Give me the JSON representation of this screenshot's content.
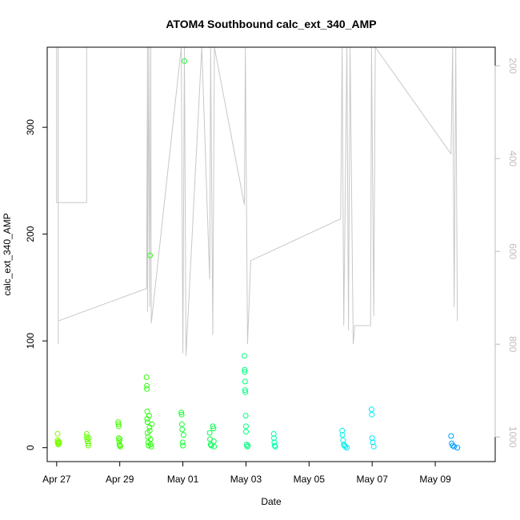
{
  "chart_data": {
    "type": "scatter",
    "title": "ATOM4 Southbound calc_ext_340_AMP",
    "xlabel": "Date",
    "ylabel": "calc_ext_340_AMP",
    "x_ticks": [
      "Apr 27",
      "Apr 29",
      "May 01",
      "May 03",
      "May 05",
      "May 07",
      "May 09"
    ],
    "y_ticks": [
      "0",
      "100",
      "200",
      "300"
    ],
    "y2_ticks": [
      "200",
      "400",
      "600",
      "800",
      "1000"
    ],
    "xlim": [
      -0.3,
      13.9
    ],
    "ylim": [
      -13,
      375
    ],
    "y2lim": [
      1053,
      160
    ],
    "x_unit": "days since Apr 27",
    "grid": false,
    "colors": {
      "line": "#c8c8c8",
      "right_axis": "#bdbdbd",
      "point_palette": [
        "#80ff00",
        "#33ff00",
        "#00ff55",
        "#00ffcc",
        "#00e6ff",
        "#0099ff"
      ]
    },
    "series": [
      {
        "name": "calc_ext_340_AMP",
        "points": [
          [
            0.03,
            13
          ],
          [
            0.03,
            7
          ],
          [
            0.03,
            5
          ],
          [
            0.05,
            4
          ],
          [
            0.05,
            3
          ],
          [
            0.06,
            6
          ],
          [
            0.07,
            4
          ],
          [
            0.08,
            5
          ],
          [
            0.95,
            13
          ],
          [
            0.95,
            10
          ],
          [
            0.97,
            8
          ],
          [
            0.98,
            6
          ],
          [
            1.0,
            4
          ],
          [
            1.0,
            2
          ],
          [
            1.02,
            9
          ],
          [
            1.95,
            24
          ],
          [
            1.96,
            22
          ],
          [
            1.97,
            20
          ],
          [
            1.97,
            9
          ],
          [
            1.98,
            6
          ],
          [
            1.99,
            3
          ],
          [
            2.0,
            2
          ],
          [
            2.0,
            8
          ],
          [
            2.02,
            1
          ],
          [
            2.85,
            66
          ],
          [
            2.86,
            58
          ],
          [
            2.86,
            55
          ],
          [
            2.87,
            34
          ],
          [
            2.87,
            27
          ],
          [
            2.88,
            24
          ],
          [
            2.88,
            14
          ],
          [
            2.9,
            10
          ],
          [
            2.9,
            5
          ],
          [
            2.91,
            2
          ],
          [
            2.93,
            30
          ],
          [
            2.94,
            19
          ],
          [
            2.95,
            16
          ],
          [
            2.96,
            180
          ],
          [
            2.97,
            8
          ],
          [
            2.98,
            3
          ],
          [
            3.0,
            1
          ],
          [
            3.02,
            22
          ],
          [
            3.95,
            33
          ],
          [
            3.96,
            31
          ],
          [
            3.97,
            22
          ],
          [
            3.98,
            17
          ],
          [
            3.99,
            5
          ],
          [
            4.0,
            2
          ],
          [
            4.02,
            12
          ],
          [
            4.05,
            362
          ],
          [
            4.85,
            14
          ],
          [
            4.86,
            8
          ],
          [
            4.88,
            3
          ],
          [
            4.9,
            2
          ],
          [
            4.95,
            20
          ],
          [
            4.97,
            18
          ],
          [
            4.98,
            6
          ],
          [
            4.99,
            1
          ],
          [
            5.95,
            86
          ],
          [
            5.96,
            73
          ],
          [
            5.96,
            71
          ],
          [
            5.97,
            62
          ],
          [
            5.97,
            54
          ],
          [
            5.98,
            52
          ],
          [
            5.99,
            30
          ],
          [
            6.0,
            20
          ],
          [
            6.0,
            15
          ],
          [
            6.02,
            3
          ],
          [
            6.04,
            1
          ],
          [
            6.06,
            2
          ],
          [
            6.88,
            13
          ],
          [
            6.89,
            9
          ],
          [
            6.9,
            5
          ],
          [
            6.91,
            2
          ],
          [
            6.93,
            1
          ],
          [
            9.05,
            16
          ],
          [
            9.06,
            12
          ],
          [
            9.08,
            7
          ],
          [
            9.1,
            3
          ],
          [
            9.12,
            2
          ],
          [
            9.15,
            1
          ],
          [
            9.2,
            0
          ],
          [
            9.98,
            36
          ],
          [
            9.99,
            31
          ],
          [
            10.0,
            9
          ],
          [
            10.02,
            5
          ],
          [
            10.05,
            1
          ],
          [
            12.5,
            11
          ],
          [
            12.52,
            4
          ],
          [
            12.55,
            2
          ],
          [
            12.6,
            1
          ],
          [
            12.7,
            0
          ]
        ]
      }
    ],
    "overlay_line": {
      "axis": "right",
      "points": [
        [
          0,
          160
        ],
        [
          0,
          495
        ],
        [
          0.95,
          495
        ],
        [
          0.95,
          160
        ],
        [
          0.05,
          160
        ],
        [
          0.05,
          800
        ],
        [
          0.05,
          750
        ],
        [
          2.85,
          680
        ],
        [
          2.88,
          160
        ],
        [
          2.88,
          730
        ],
        [
          2.92,
          160
        ],
        [
          2.95,
          720
        ],
        [
          2.98,
          160
        ],
        [
          3.0,
          755
        ],
        [
          3.95,
          160
        ],
        [
          4.0,
          820
        ],
        [
          4.05,
          160
        ],
        [
          4.1,
          825
        ],
        [
          4.6,
          160
        ],
        [
          4.85,
          660
        ],
        [
          4.88,
          160
        ],
        [
          4.95,
          780
        ],
        [
          5.0,
          160
        ],
        [
          5.95,
          500
        ],
        [
          5.98,
          160
        ],
        [
          6.05,
          800
        ],
        [
          6.15,
          620
        ],
        [
          9.0,
          530
        ],
        [
          9.05,
          160
        ],
        [
          9.1,
          760
        ],
        [
          9.2,
          160
        ],
        [
          9.25,
          770
        ],
        [
          9.3,
          160
        ],
        [
          9.4,
          800
        ],
        [
          9.45,
          760
        ],
        [
          9.95,
          760
        ],
        [
          9.98,
          160
        ],
        [
          10.05,
          740
        ],
        [
          10.1,
          160
        ],
        [
          12.5,
          390
        ],
        [
          12.55,
          160
        ],
        [
          12.6,
          720
        ],
        [
          12.65,
          160
        ],
        [
          12.7,
          750
        ]
      ]
    }
  }
}
